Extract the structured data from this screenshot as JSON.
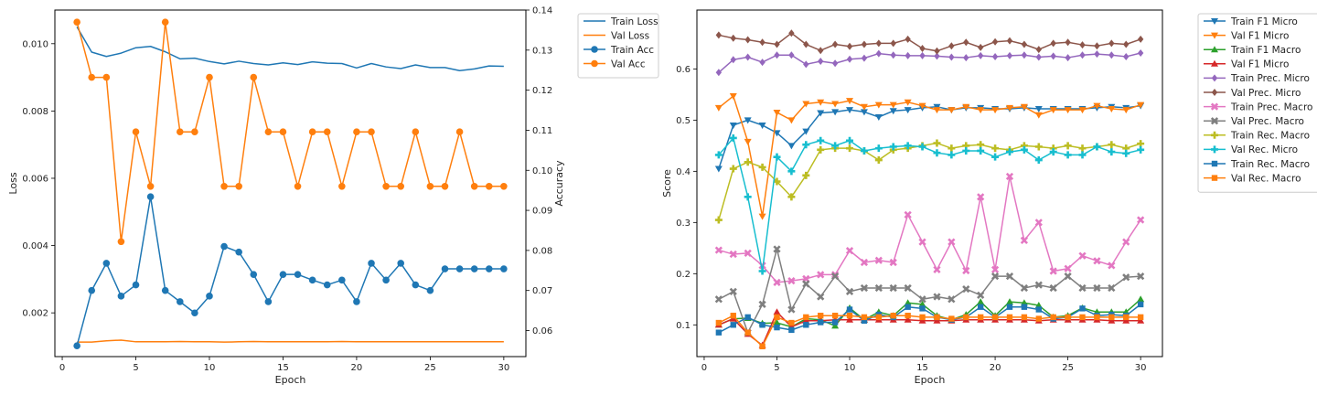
{
  "chart_data": [
    {
      "type": "line",
      "xlabel": "Epoch",
      "ylabel": "Loss",
      "y2label": "Accuracy",
      "xlim": [
        -0.5,
        31.5
      ],
      "ylim": [
        0.0007,
        0.011
      ],
      "y2lim": [
        0.0535,
        0.14
      ],
      "xticks": [
        "0",
        "5",
        "10",
        "15",
        "20",
        "25",
        "30"
      ],
      "xtick_values": [
        0,
        5,
        10,
        15,
        20,
        25,
        30
      ],
      "yticks": [
        "0.002",
        "0.004",
        "0.006",
        "0.008",
        "0.010"
      ],
      "ytick_values": [
        0.002,
        0.004,
        0.006,
        0.008,
        0.01
      ],
      "y2ticks": [
        "0.06",
        "0.07",
        "0.08",
        "0.09",
        "0.10",
        "0.11",
        "0.12",
        "0.13",
        "0.14"
      ],
      "y2tick_values": [
        0.06,
        0.07,
        0.08,
        0.09,
        0.1,
        0.11,
        0.12,
        0.13,
        0.14
      ],
      "grid": false,
      "legend_position": "outside-top-right",
      "x": [
        1,
        2,
        3,
        4,
        5,
        6,
        7,
        8,
        9,
        10,
        11,
        12,
        13,
        14,
        15,
        16,
        17,
        18,
        19,
        20,
        21,
        22,
        23,
        24,
        25,
        26,
        27,
        28,
        29,
        30
      ],
      "series": [
        {
          "name": "Train Loss",
          "axis": "left",
          "color": "#1f77b4",
          "marker": "none",
          "values": [
            0.0105,
            0.00975,
            0.00962,
            0.00972,
            0.00988,
            0.00992,
            0.00976,
            0.00955,
            0.00957,
            0.00947,
            0.0094,
            0.00948,
            0.00941,
            0.00937,
            0.00943,
            0.00938,
            0.00946,
            0.00942,
            0.00941,
            0.00928,
            0.00941,
            0.00931,
            0.00926,
            0.00937,
            0.00929,
            0.00929,
            0.0092,
            0.00925,
            0.00934,
            0.00933
          ]
        },
        {
          "name": "Val Loss",
          "axis": "left",
          "color": "#ff7f0e",
          "marker": "none",
          "values": [
            0.00113,
            0.00113,
            0.00117,
            0.00119,
            0.00114,
            0.00114,
            0.00114,
            0.00115,
            0.00114,
            0.00114,
            0.00113,
            0.00114,
            0.00115,
            0.00114,
            0.00114,
            0.00114,
            0.00114,
            0.00114,
            0.00115,
            0.00114,
            0.00114,
            0.00114,
            0.00114,
            0.00114,
            0.00114,
            0.00114,
            0.00114,
            0.00114,
            0.00114,
            0.00114
          ]
        },
        {
          "name": "Train Acc",
          "axis": "right",
          "color": "#1f77b4",
          "marker": "circle",
          "values": [
            0.0562,
            0.07,
            0.0768,
            0.0686,
            0.0714,
            0.0934,
            0.07,
            0.0672,
            0.0644,
            0.0686,
            0.081,
            0.0796,
            0.074,
            0.0672,
            0.074,
            0.074,
            0.0726,
            0.0714,
            0.0726,
            0.0672,
            0.0768,
            0.0726,
            0.0768,
            0.0714,
            0.07,
            0.0754,
            0.0754,
            0.0754,
            0.0754,
            0.0754
          ]
        },
        {
          "name": "Val Acc",
          "axis": "right",
          "color": "#ff7f0e",
          "marker": "circle",
          "values": [
            0.137,
            0.1232,
            0.1232,
            0.0822,
            0.1096,
            0.096,
            0.137,
            0.1096,
            0.1096,
            0.1232,
            0.096,
            0.096,
            0.1232,
            0.1096,
            0.1096,
            0.096,
            0.1096,
            0.1096,
            0.096,
            0.1096,
            0.1096,
            0.096,
            0.096,
            0.1096,
            0.096,
            0.096,
            0.1096,
            0.096,
            0.096,
            0.096
          ]
        }
      ]
    },
    {
      "type": "line",
      "xlabel": "Epoch",
      "ylabel": "Score",
      "xlim": [
        -0.5,
        31.5
      ],
      "ylim": [
        0.038,
        0.715
      ],
      "xticks": [
        "0",
        "5",
        "10",
        "15",
        "20",
        "25",
        "30"
      ],
      "xtick_values": [
        0,
        5,
        10,
        15,
        20,
        25,
        30
      ],
      "yticks": [
        "0.1",
        "0.2",
        "0.3",
        "0.4",
        "0.5",
        "0.6"
      ],
      "ytick_values": [
        0.1,
        0.2,
        0.3,
        0.4,
        0.5,
        0.6
      ],
      "grid": false,
      "legend_position": "outside-top-right",
      "x": [
        1,
        2,
        3,
        4,
        5,
        6,
        7,
        8,
        9,
        10,
        11,
        12,
        13,
        14,
        15,
        16,
        17,
        18,
        19,
        20,
        21,
        22,
        23,
        24,
        25,
        26,
        27,
        28,
        29,
        30
      ],
      "series": [
        {
          "name": "Train F1 Micro",
          "color": "#1f77b4",
          "marker": "tri_down",
          "values": [
            0.405,
            0.49,
            0.5,
            0.49,
            0.475,
            0.45,
            0.478,
            0.514,
            0.516,
            0.52,
            0.516,
            0.506,
            0.518,
            0.52,
            0.524,
            0.526,
            0.52,
            0.524,
            0.524,
            0.522,
            0.522,
            0.524,
            0.522,
            0.522,
            0.522,
            0.522,
            0.524,
            0.526,
            0.524,
            0.528
          ]
        },
        {
          "name": "Val F1 Micro",
          "color": "#ff7f0e",
          "marker": "tri_down",
          "values": [
            0.524,
            0.547,
            0.458,
            0.312,
            0.515,
            0.5,
            0.532,
            0.535,
            0.532,
            0.538,
            0.526,
            0.53,
            0.53,
            0.535,
            0.528,
            0.52,
            0.52,
            0.526,
            0.52,
            0.52,
            0.524,
            0.526,
            0.51,
            0.52,
            0.52,
            0.52,
            0.528,
            0.522,
            0.52,
            0.53
          ]
        },
        {
          "name": "Train F1 Macro",
          "color": "#2ca02c",
          "marker": "tri_up",
          "values": [
            0.1,
            0.112,
            0.113,
            0.103,
            0.104,
            0.096,
            0.112,
            0.11,
            0.098,
            0.133,
            0.11,
            0.125,
            0.118,
            0.143,
            0.14,
            0.118,
            0.11,
            0.12,
            0.145,
            0.118,
            0.145,
            0.143,
            0.138,
            0.115,
            0.118,
            0.133,
            0.125,
            0.125,
            0.125,
            0.15
          ]
        },
        {
          "name": "Val F1 Micro",
          "color": "#d62728",
          "marker": "tri_up",
          "values": [
            0.1,
            0.112,
            0.082,
            0.06,
            0.125,
            0.096,
            0.108,
            0.108,
            0.11,
            0.11,
            0.11,
            0.11,
            0.11,
            0.11,
            0.108,
            0.108,
            0.108,
            0.11,
            0.11,
            0.11,
            0.11,
            0.11,
            0.108,
            0.11,
            0.11,
            0.11,
            0.11,
            0.108,
            0.108,
            0.108
          ]
        },
        {
          "name": "Train Prec. Micro",
          "color": "#9467bd",
          "marker": "diamond",
          "values": [
            0.593,
            0.618,
            0.623,
            0.613,
            0.627,
            0.627,
            0.609,
            0.615,
            0.611,
            0.619,
            0.621,
            0.63,
            0.627,
            0.626,
            0.626,
            0.625,
            0.623,
            0.622,
            0.626,
            0.624,
            0.626,
            0.627,
            0.623,
            0.625,
            0.622,
            0.627,
            0.629,
            0.627,
            0.624,
            0.631
          ]
        },
        {
          "name": "Val Prec. Micro",
          "color": "#8c564b",
          "marker": "diamond",
          "values": [
            0.666,
            0.66,
            0.657,
            0.652,
            0.648,
            0.67,
            0.648,
            0.636,
            0.648,
            0.644,
            0.648,
            0.65,
            0.65,
            0.658,
            0.64,
            0.635,
            0.645,
            0.652,
            0.642,
            0.653,
            0.655,
            0.648,
            0.638,
            0.65,
            0.652,
            0.647,
            0.645,
            0.65,
            0.648,
            0.658
          ]
        },
        {
          "name": "Train Prec. Macro",
          "color": "#e377c2",
          "marker": "x",
          "values": [
            0.246,
            0.238,
            0.24,
            0.216,
            0.183,
            0.186,
            0.19,
            0.198,
            0.198,
            0.245,
            0.222,
            0.226,
            0.222,
            0.315,
            0.262,
            0.208,
            0.262,
            0.206,
            0.35,
            0.208,
            0.39,
            0.265,
            0.3,
            0.205,
            0.21,
            0.235,
            0.225,
            0.216,
            0.262,
            0.305
          ]
        },
        {
          "name": "Val Prec. Macro",
          "color": "#7f7f7f",
          "marker": "x",
          "values": [
            0.15,
            0.165,
            0.085,
            0.14,
            0.248,
            0.13,
            0.18,
            0.155,
            0.195,
            0.165,
            0.172,
            0.172,
            0.172,
            0.172,
            0.15,
            0.155,
            0.15,
            0.17,
            0.158,
            0.195,
            0.195,
            0.172,
            0.178,
            0.172,
            0.195,
            0.172,
            0.172,
            0.172,
            0.193,
            0.195
          ]
        },
        {
          "name": "Train Rec. Macro",
          "color": "#bcbd22",
          "marker": "plus",
          "values": [
            0.305,
            0.405,
            0.418,
            0.408,
            0.38,
            0.35,
            0.392,
            0.442,
            0.445,
            0.445,
            0.44,
            0.422,
            0.442,
            0.445,
            0.45,
            0.455,
            0.445,
            0.45,
            0.452,
            0.445,
            0.442,
            0.45,
            0.448,
            0.445,
            0.45,
            0.445,
            0.448,
            0.452,
            0.445,
            0.454
          ]
        },
        {
          "name": "Val Rec. Micro",
          "color": "#17becf",
          "marker": "plus",
          "values": [
            0.432,
            0.465,
            0.35,
            0.205,
            0.428,
            0.4,
            0.452,
            0.46,
            0.45,
            0.46,
            0.44,
            0.445,
            0.448,
            0.45,
            0.448,
            0.436,
            0.432,
            0.44,
            0.44,
            0.428,
            0.438,
            0.442,
            0.422,
            0.438,
            0.432,
            0.432,
            0.448,
            0.438,
            0.435,
            0.442
          ]
        },
        {
          "name": "Train Rec. Macro",
          "color": "#1f77b4",
          "marker": "square",
          "values": [
            0.085,
            0.1,
            0.115,
            0.1,
            0.095,
            0.09,
            0.1,
            0.105,
            0.105,
            0.13,
            0.108,
            0.12,
            0.115,
            0.135,
            0.132,
            0.115,
            0.11,
            0.115,
            0.135,
            0.115,
            0.135,
            0.135,
            0.13,
            0.112,
            0.115,
            0.132,
            0.118,
            0.12,
            0.118,
            0.14
          ]
        },
        {
          "name": "Val Rec. Macro",
          "color": "#ff7f0e",
          "marker": "square",
          "values": [
            0.104,
            0.118,
            0.085,
            0.058,
            0.115,
            0.104,
            0.115,
            0.118,
            0.118,
            0.118,
            0.115,
            0.115,
            0.118,
            0.118,
            0.115,
            0.115,
            0.112,
            0.115,
            0.115,
            0.115,
            0.115,
            0.115,
            0.112,
            0.115,
            0.115,
            0.115,
            0.115,
            0.115,
            0.115,
            0.115
          ]
        }
      ]
    }
  ]
}
